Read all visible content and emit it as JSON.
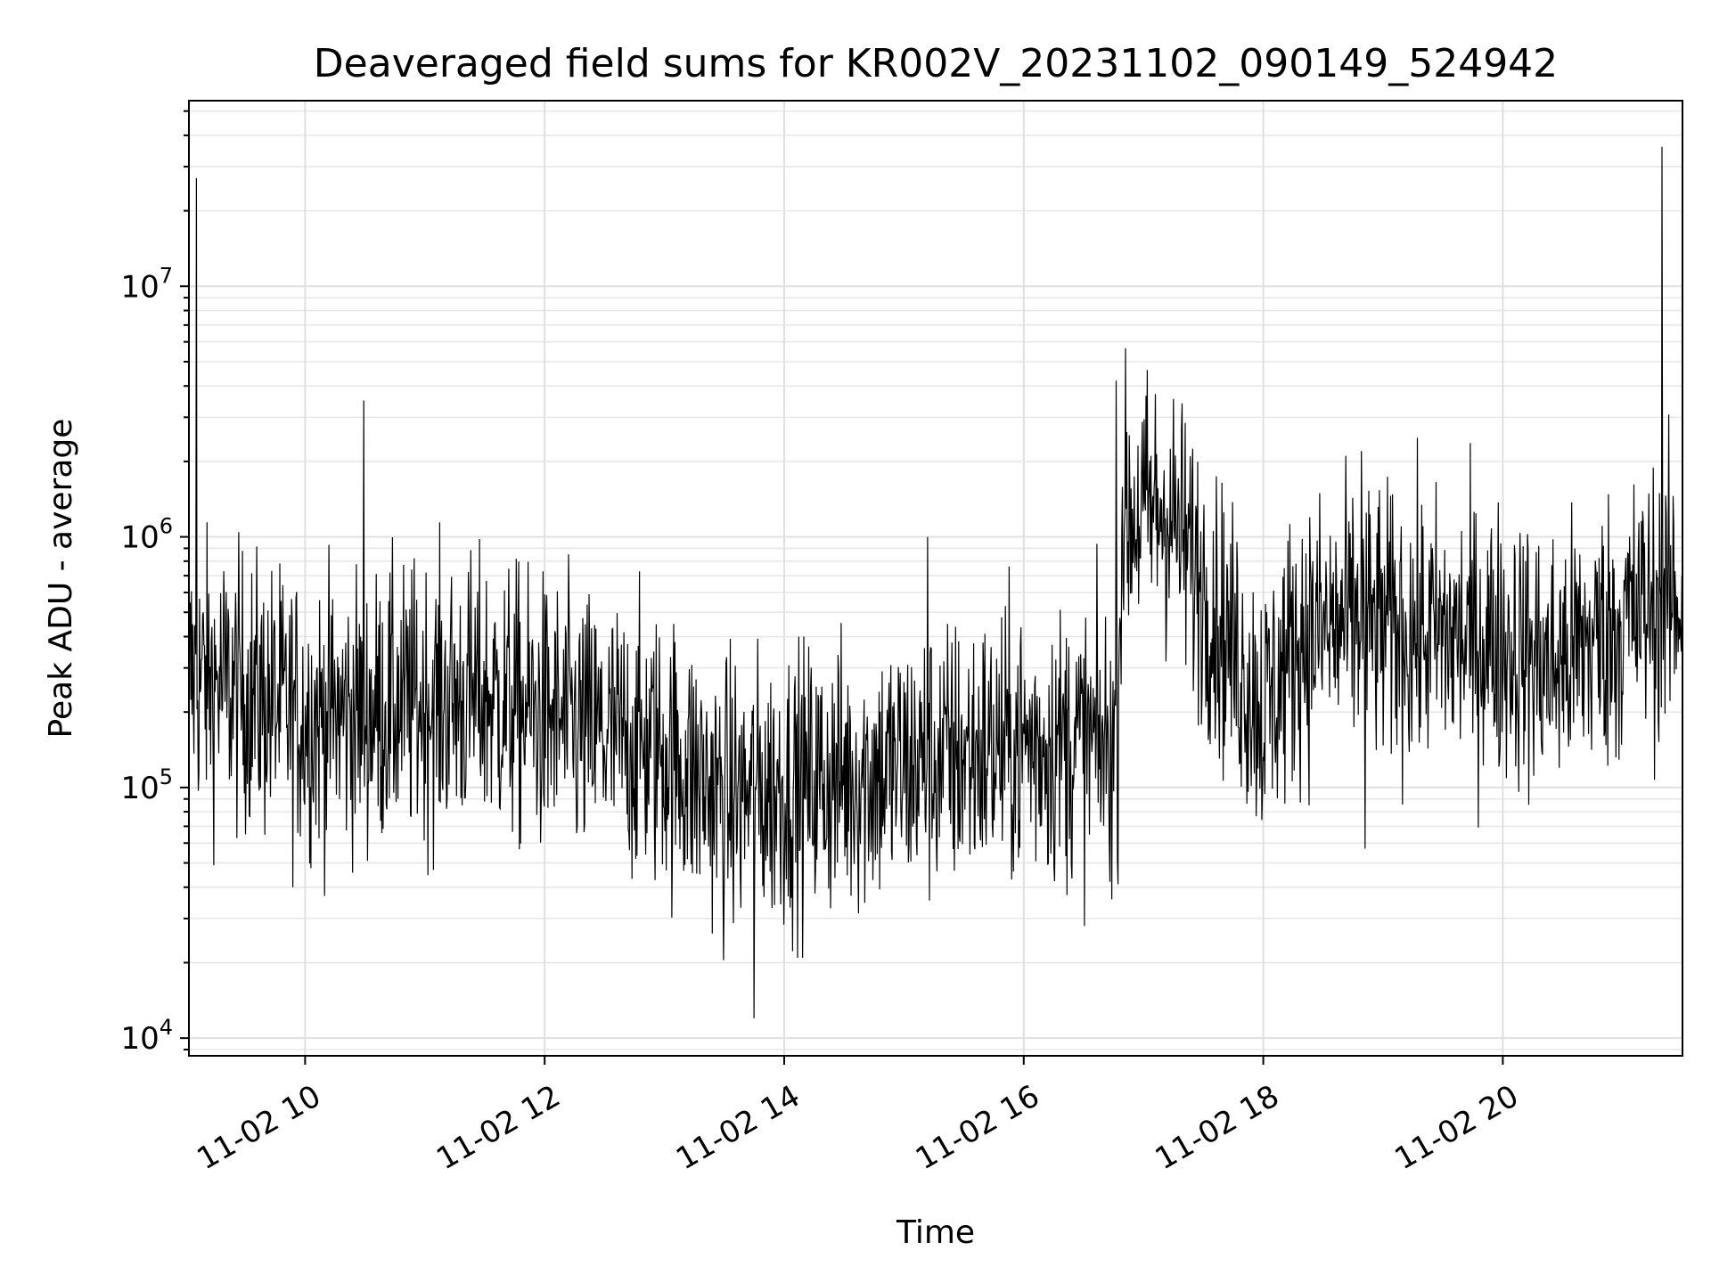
{
  "chart_data": {
    "type": "line",
    "title": "Deaveraged field sums for KR002V_20231102_090149_524942",
    "xlabel": "Time",
    "ylabel": "Peak ADU - average",
    "y_scale": "log",
    "x_unit": "hours since 2023-11-02 00:00",
    "xlim": [
      9.03,
      21.5
    ],
    "ylim": [
      8500,
      55000000
    ],
    "grid": true,
    "x_ticks": [
      {
        "value": 10,
        "label": "11-02 10"
      },
      {
        "value": 12,
        "label": "11-02 12"
      },
      {
        "value": 14,
        "label": "11-02 14"
      },
      {
        "value": 16,
        "label": "11-02 16"
      },
      {
        "value": 18,
        "label": "11-02 18"
      },
      {
        "value": 20,
        "label": "11-02 20"
      }
    ],
    "y_ticks": [
      {
        "value": 10000,
        "base": "10",
        "exp": "4"
      },
      {
        "value": 100000,
        "base": "10",
        "exp": "5"
      },
      {
        "value": 1000000,
        "base": "10",
        "exp": "6"
      },
      {
        "value": 10000000,
        "base": "10",
        "exp": "7"
      }
    ],
    "series": [
      {
        "color": "#000000",
        "baseline": [
          [
            9.03,
            280000
          ],
          [
            9.5,
            240000
          ],
          [
            10.0,
            190000
          ],
          [
            10.5,
            200000
          ],
          [
            11.0,
            220000
          ],
          [
            11.5,
            230000
          ],
          [
            12.0,
            190000
          ],
          [
            12.5,
            160000
          ],
          [
            13.0,
            140000
          ],
          [
            13.5,
            90000
          ],
          [
            14.0,
            100000
          ],
          [
            14.5,
            110000
          ],
          [
            15.0,
            120000
          ],
          [
            15.5,
            135000
          ],
          [
            16.0,
            150000
          ],
          [
            16.5,
            150000
          ],
          [
            16.78,
            140000
          ],
          [
            16.82,
            1200000
          ],
          [
            17.2,
            1300000
          ],
          [
            17.6,
            500000
          ],
          [
            18.0,
            200000
          ],
          [
            18.3,
            400000
          ],
          [
            18.8,
            450000
          ],
          [
            19.5,
            400000
          ],
          [
            20.0,
            380000
          ],
          [
            20.4,
            300000
          ],
          [
            20.8,
            400000
          ],
          [
            21.2,
            520000
          ],
          [
            21.5,
            560000
          ]
        ],
        "noise_decades": 0.55,
        "points": 2400,
        "spikes": [
          [
            9.09,
            27000000
          ],
          [
            10.49,
            3500000
          ],
          [
            13.75,
            12000
          ],
          [
            15.2,
            1000000
          ],
          [
            16.77,
            4200000
          ],
          [
            18.82,
            2200000
          ],
          [
            18.85,
            57000
          ],
          [
            21.33,
            36000000
          ]
        ]
      }
    ]
  }
}
